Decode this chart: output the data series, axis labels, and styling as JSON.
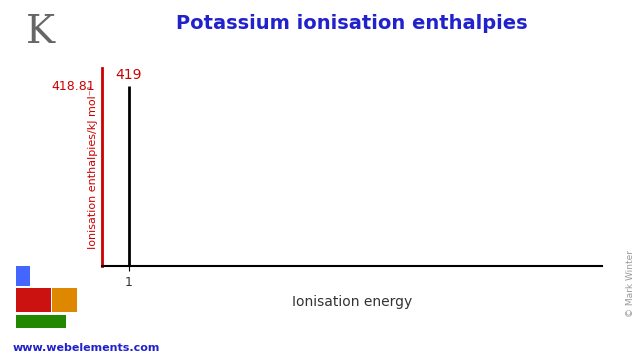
{
  "title": "Potassium ionisation enthalpies",
  "element_symbol": "K",
  "xlabel": "Ionisation energy",
  "ylabel": "Ionisation enthalpies/kJ mol⁻¹",
  "ionisation_energies": [
    1
  ],
  "ionisation_values": [
    418.81
  ],
  "bar_label": "419",
  "bar_value_label": "418.81",
  "ylim": [
    0,
    460
  ],
  "xlim": [
    0,
    19
  ],
  "title_color": "#2222cc",
  "element_color": "#666666",
  "ylabel_color": "#cc0000",
  "bar_value_color": "#cc0000",
  "bar_label_color": "#cc0000",
  "bar_color": "#000000",
  "axis_color": "#000000",
  "xtick": [
    1
  ],
  "website": "www.webelements.com",
  "website_color": "#2222cc",
  "copyright": "© Mark Winter",
  "copyright_color": "#999999",
  "periodic_table_colors": {
    "blue": "#4466ff",
    "red": "#cc1111",
    "orange": "#dd8800",
    "green": "#228800"
  },
  "background_color": "#ffffff"
}
